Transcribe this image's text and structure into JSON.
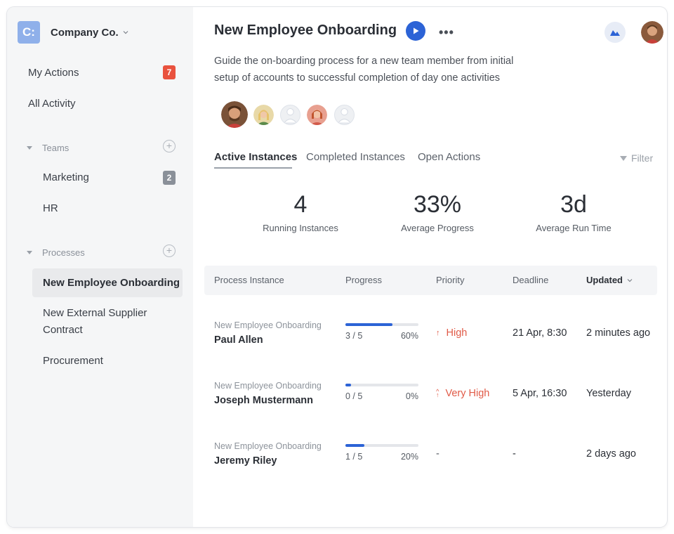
{
  "sidebar": {
    "brand": {
      "logo_text": "C:",
      "name": "Company Co.",
      "logo_color": "#8fb0ea"
    },
    "my_actions": {
      "label": "My Actions",
      "badge": "7",
      "badge_color": "#e9523e"
    },
    "all_activity": {
      "label": "All Activity"
    },
    "teams": {
      "label": "Teams",
      "items": [
        {
          "label": "Marketing",
          "badge": "2",
          "badge_color": "#8a9099"
        },
        {
          "label": "HR"
        }
      ]
    },
    "processes": {
      "label": "Processes",
      "items": [
        {
          "label": "New Employee Onboarding",
          "active": true
        },
        {
          "label": "New External Supplier Contract"
        },
        {
          "label": "Procurement"
        }
      ]
    }
  },
  "header": {
    "title": "New Employee Onboarding",
    "description": "Guide the on-boarding process for a new team member from initial setup of accounts to successful completion of day one activities",
    "accent": "#2c63d6",
    "icons": [
      "play-icon",
      "more-icon",
      "cloud-icon",
      "user-avatar"
    ]
  },
  "tabs": {
    "active": "Active Instances",
    "completed": "Completed Instances",
    "open": "Open Actions",
    "filter": "Filter"
  },
  "stats": [
    {
      "value": "4",
      "label": "Running Instances"
    },
    {
      "value": "33%",
      "label": "Average Progress"
    },
    {
      "value": "3d",
      "label": "Average Run Time"
    }
  ],
  "table": {
    "columns": {
      "process": "Process Instance",
      "progress": "Progress",
      "priority": "Priority",
      "deadline": "Deadline",
      "updated": "Updated"
    },
    "rows": [
      {
        "process": "New Employee Onboarding",
        "person": "Paul Allen",
        "steps": "3 / 5",
        "percent": "60%",
        "progress_fraction": 0.64,
        "priority": "High",
        "priority_icon": "arrow-up-icon",
        "deadline": "21 Apr, 8:30",
        "updated": "2 minutes ago"
      },
      {
        "process": "New Employee Onboarding",
        "person": "Joseph Mustermann",
        "steps": "0 / 5",
        "percent": "0%",
        "progress_fraction": 0.08,
        "priority": "Very High",
        "priority_icon": "double-arrow-up-icon",
        "deadline": "5 Apr, 16:30",
        "updated": "Yesterday"
      },
      {
        "process": "New Employee Onboarding",
        "person": "Jeremy Riley",
        "steps": "1 / 5",
        "percent": "20%",
        "progress_fraction": 0.26,
        "priority": "-",
        "priority_icon": "",
        "deadline": "-",
        "updated": "2 days ago"
      }
    ]
  },
  "colors": {
    "sidebar_bg": "#f5f6f7",
    "priority_red": "#e05a47",
    "progress_blue": "#2c63d6"
  }
}
